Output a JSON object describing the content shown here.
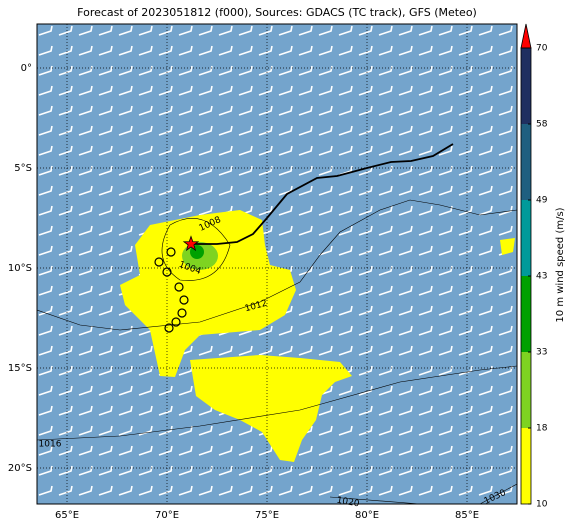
{
  "chart_data": {
    "type": "map",
    "title": "Forecast of 2023051812 (f000), Sources: GDACS (TC track), GFS (Meteo)",
    "xlim": [
      63.5,
      87.5
    ],
    "ylim": [
      -21.8,
      2.2
    ],
    "xticks": [
      {
        "value": 65,
        "label": "65°E"
      },
      {
        "value": 70,
        "label": "70°E"
      },
      {
        "value": 75,
        "label": "75°E"
      },
      {
        "value": 80,
        "label": "80°E"
      },
      {
        "value": 85,
        "label": "85°E"
      }
    ],
    "yticks": [
      {
        "value": 0,
        "label": "0°"
      },
      {
        "value": -5,
        "label": "5°S"
      },
      {
        "value": -10,
        "label": "10°S"
      },
      {
        "value": -15,
        "label": "15°S"
      },
      {
        "value": -20,
        "label": "20°S"
      }
    ],
    "grid": true,
    "track": {
      "color": "#000000",
      "x": [
        71.2,
        72.5,
        73.5,
        74.3,
        75.0,
        76.0,
        77.5,
        78.5,
        80.0,
        81.2,
        82.2,
        83.3,
        84.3
      ],
      "y": [
        -8.8,
        -8.8,
        -8.7,
        -8.3,
        -7.5,
        -6.3,
        -5.5,
        -5.4,
        -5.0,
        -4.7,
        -4.65,
        -4.4,
        -3.8
      ]
    },
    "storm": {
      "x": 71.2,
      "y": -8.8,
      "color": "#ff0000"
    },
    "contour_levels": [
      1008,
      1004,
      1012,
      1016,
      1020,
      1030
    ],
    "colorbar": {
      "label": "10 m wind speed (m/s)",
      "ticks": [
        10,
        18,
        33,
        43,
        49,
        58,
        70
      ],
      "colors": [
        "#ffff00",
        "#7ed321",
        "#00a000",
        "#009a9a",
        "#1f5f80",
        "#1f2f60"
      ],
      "extend_color": "#ff0000"
    }
  }
}
